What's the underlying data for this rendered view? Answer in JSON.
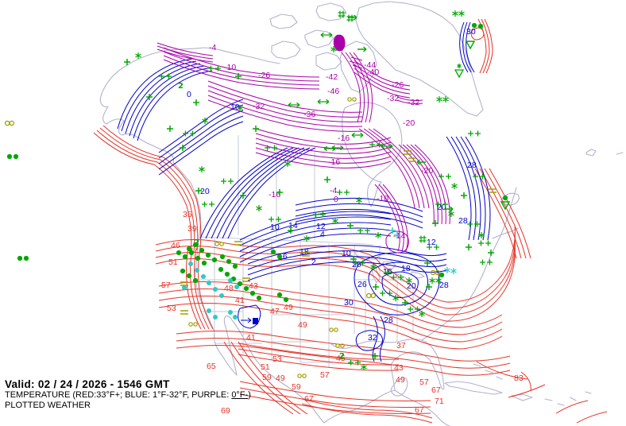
{
  "header": {
    "valid_label": "Valid: 02 / 24 / 2026  -  1546 GMT",
    "legend_prefix": "TEMPERATURE (RED:33°F+; BLUE: 1°F-32°F, PURPLE: ",
    "legend_underlined": "0°F-",
    "legend_suffix": ")",
    "plotted_label": "PLOTTED WEATHER"
  },
  "colors": {
    "red": "#e63328",
    "blue": "#0000c8",
    "purple": "#aa00aa",
    "green": "#00a800",
    "cyan": "#2fc8c8",
    "olive": "#a0a000",
    "coast": "#b2b2cf",
    "border": "#c6c9da",
    "text": "#000000",
    "background": "#ffffff"
  },
  "map": {
    "region": "North America",
    "contour_units": "°F",
    "label_format": [
      "text",
      "x",
      "y",
      "color_class"
    ],
    "contour_labels": [
      [
        "46",
        215,
        312,
        "r"
      ],
      [
        "51",
        212,
        333,
        "r"
      ],
      [
        "57",
        203,
        362,
        "r"
      ],
      [
        "53",
        210,
        391,
        "r"
      ],
      [
        "35",
        230,
        273,
        "r"
      ],
      [
        "39",
        236,
        291,
        "r"
      ],
      [
        "48",
        282,
        366,
        "r"
      ],
      [
        "43",
        313,
        363,
        "r"
      ],
      [
        "41",
        296,
        381,
        "r"
      ],
      [
        "49",
        357,
        390,
        "r"
      ],
      [
        "47",
        340,
        395,
        "r"
      ],
      [
        "49",
        375,
        412,
        "r"
      ],
      [
        "41",
        310,
        428,
        "r"
      ],
      [
        "45",
        423,
        454,
        "r"
      ],
      [
        "37",
        499,
        438,
        "r"
      ],
      [
        "43",
        496,
        466,
        "r"
      ],
      [
        "49",
        498,
        481,
        "r"
      ],
      [
        "57",
        528,
        484,
        "r"
      ],
      [
        "67",
        543,
        494,
        "r"
      ],
      [
        "71",
        547,
        508,
        "r"
      ],
      [
        "67",
        522,
        519,
        "r"
      ],
      [
        "83",
        647,
        479,
        "r"
      ],
      [
        "69",
        278,
        520,
        "r"
      ],
      [
        "49",
        347,
        479,
        "r"
      ],
      [
        "65",
        260,
        464,
        "r"
      ],
      [
        "53",
        343,
        455,
        "r"
      ],
      [
        "51",
        328,
        465,
        "r"
      ],
      [
        "59",
        330,
        478,
        "r"
      ],
      [
        "59",
        367,
        490,
        "r"
      ],
      [
        "57",
        403,
        475,
        "r"
      ],
      [
        "67",
        383,
        505,
        "r"
      ],
      [
        "0",
        235,
        122,
        "b"
      ],
      [
        "10",
        290,
        138,
        "b"
      ],
      [
        "20",
        252,
        244,
        "b"
      ],
      [
        "14",
        363,
        287,
        "b"
      ],
      [
        "10",
        340,
        289,
        "b"
      ],
      [
        "12",
        398,
        288,
        "b"
      ],
      [
        "4",
        403,
        298,
        "b"
      ],
      [
        "18",
        377,
        320,
        "b"
      ],
      [
        "16",
        350,
        326,
        "b"
      ],
      [
        "2",
        392,
        333,
        "b"
      ],
      [
        "10",
        430,
        322,
        "b"
      ],
      [
        "20",
        443,
        336,
        "b"
      ],
      [
        "16",
        482,
        345,
        "b"
      ],
      [
        "18",
        505,
        341,
        "b"
      ],
      [
        "20",
        512,
        363,
        "b"
      ],
      [
        "26",
        450,
        361,
        "b"
      ],
      [
        "28",
        553,
        362,
        "b"
      ],
      [
        "30",
        433,
        384,
        "b"
      ],
      [
        "28",
        483,
        406,
        "b"
      ],
      [
        "32",
        463,
        428,
        "b"
      ],
      [
        "20",
        550,
        264,
        "b"
      ],
      [
        "28",
        588,
        211,
        "b"
      ],
      [
        "28",
        577,
        281,
        "b"
      ],
      [
        "30",
        587,
        43,
        "b"
      ],
      [
        "12",
        537,
        308,
        "b"
      ],
      [
        "-4",
        263,
        63,
        "p"
      ],
      [
        "-10",
        282,
        88,
        "p"
      ],
      [
        "-26",
        325,
        98,
        "p"
      ],
      [
        "-32",
        318,
        137,
        "p"
      ],
      [
        "-36",
        382,
        147,
        "p"
      ],
      [
        "-42",
        410,
        100,
        "p"
      ],
      [
        "-46",
        412,
        118,
        "p"
      ],
      [
        "-44",
        458,
        85,
        "p"
      ],
      [
        "-40",
        462,
        94,
        "p"
      ],
      [
        "-26",
        493,
        110,
        "p"
      ],
      [
        "-32",
        487,
        127,
        "p"
      ],
      [
        "-32",
        513,
        132,
        "p"
      ],
      [
        "-20",
        507,
        158,
        "p"
      ],
      [
        "-16",
        425,
        177,
        "p"
      ],
      [
        "-16",
        413,
        207,
        "p"
      ],
      [
        "-4",
        415,
        243,
        "p"
      ],
      [
        "0",
        420,
        254,
        "p"
      ],
      [
        "-10",
        474,
        253,
        "p"
      ],
      [
        "-16",
        338,
        248,
        "p"
      ],
      [
        "-14",
        495,
        300,
        "p"
      ],
      [
        "-20",
        530,
        218,
        "p"
      ]
    ],
    "station_symbol_format": [
      "symbol_type",
      "x",
      "y"
    ],
    "station_symbol_legend": {
      "dot": "green station dot",
      "dotc": "cyan station dot",
      "plus": "green plus",
      "plusc": "cyan plus",
      "dplus": "green double plus",
      "ast": "green asterisk",
      "astc": "cyan asterisk",
      "dast": "green double asterisk",
      "hash": "green hash",
      "arr": "green right arrow",
      "arl": "green left arrow",
      "darr": "green double arrow",
      "tri": "green open triangle",
      "tria": "green triangle with asterisk",
      "inf": "olive infinity (haze)",
      "eq": "olive bars (fog)",
      "oo": "olive circles",
      "sq": "green drizzle squiggle"
    },
    "stations": [
      [
        "inf",
        12,
        155
      ],
      [
        "inf",
        467,
        372
      ],
      [
        "inf",
        548,
        343
      ],
      [
        "dot",
        225,
        318
      ],
      [
        "dot",
        233,
        323
      ],
      [
        "dot",
        241,
        318
      ],
      [
        "dot",
        249,
        325
      ],
      [
        "dot",
        257,
        331
      ],
      [
        "dot",
        238,
        313
      ],
      [
        "dot",
        246,
        308
      ],
      [
        "dot",
        254,
        315
      ],
      [
        "dot",
        262,
        321
      ],
      [
        "dot",
        270,
        327
      ],
      [
        "dot",
        230,
        341
      ],
      [
        "dot",
        238,
        347
      ],
      [
        "dot",
        246,
        353
      ],
      [
        "dot",
        278,
        339
      ],
      [
        "dot",
        286,
        345
      ],
      [
        "dot",
        294,
        351
      ],
      [
        "dot",
        302,
        357
      ],
      [
        "dot",
        310,
        363
      ],
      [
        "dot",
        318,
        369
      ],
      [
        "dot",
        280,
        323
      ],
      [
        "dot",
        288,
        329
      ],
      [
        "dot",
        296,
        335
      ],
      [
        "dot",
        326,
        375
      ],
      [
        "dot",
        344,
        317
      ],
      [
        "dot",
        352,
        323
      ],
      [
        "dot",
        352,
        371
      ],
      [
        "dot",
        360,
        377
      ],
      [
        "dot",
        12,
        197
      ],
      [
        "dot",
        20,
        197
      ],
      [
        "dot",
        25,
        325
      ],
      [
        "dot",
        33,
        325
      ],
      [
        "dot",
        597,
        32
      ],
      [
        "dot",
        605,
        33
      ],
      [
        "dot",
        636,
        249
      ],
      [
        "dot",
        556,
        346
      ],
      [
        "dotc",
        240,
        332
      ],
      [
        "dotc",
        248,
        340
      ],
      [
        "dotc",
        256,
        348
      ],
      [
        "dotc",
        263,
        356
      ],
      [
        "dotc",
        271,
        364
      ],
      [
        "dotc",
        279,
        372
      ],
      [
        "dotc",
        263,
        391
      ],
      [
        "dotc",
        271,
        399
      ],
      [
        "dotc",
        290,
        393
      ],
      [
        "dotc",
        296,
        399
      ],
      [
        "dotc",
        290,
        353
      ],
      [
        "dotc",
        298,
        361
      ],
      [
        "dotc",
        232,
        362
      ],
      [
        "plus",
        160,
        78
      ],
      [
        "plus",
        188,
        122
      ],
      [
        "plus",
        214,
        162
      ],
      [
        "plus",
        247,
        129
      ],
      [
        "plus",
        300,
        96
      ],
      [
        "plus",
        322,
        162
      ],
      [
        "plus",
        230,
        186
      ],
      [
        "plus",
        250,
        240
      ],
      [
        "plus",
        306,
        246
      ],
      [
        "plus",
        352,
        242
      ],
      [
        "plus",
        366,
        290
      ],
      [
        "plus",
        412,
        226
      ],
      [
        "plus",
        441,
        284
      ],
      [
        "plus",
        445,
        326
      ],
      [
        "plus",
        473,
        361
      ],
      [
        "plus",
        488,
        343
      ],
      [
        "plus",
        510,
        381
      ],
      [
        "plus",
        540,
        361
      ],
      [
        "plus",
        538,
        331
      ],
      [
        "plus",
        584,
        246
      ],
      [
        "plus",
        548,
        281
      ],
      [
        "plus",
        590,
        311
      ],
      [
        "plus",
        618,
        318
      ],
      [
        "plus",
        472,
        448
      ],
      [
        "dplus",
        208,
        96
      ],
      [
        "dplus",
        238,
        168
      ],
      [
        "dplus",
        270,
        86
      ],
      [
        "dplus",
        341,
        186
      ],
      [
        "dplus",
        262,
        257
      ],
      [
        "dplus",
        286,
        228
      ],
      [
        "dplus",
        346,
        276
      ],
      [
        "dplus",
        402,
        270
      ],
      [
        "dplus",
        432,
        242
      ],
      [
        "dplus",
        458,
        290
      ],
      [
        "dplus",
        452,
        331
      ],
      [
        "dplus",
        486,
        369
      ],
      [
        "dplus",
        500,
        349
      ],
      [
        "dplus",
        521,
        389
      ],
      [
        "dplus",
        560,
        222
      ],
      [
        "dplus",
        556,
        257
      ],
      [
        "dplus",
        545,
        311
      ],
      [
        "dplus",
        596,
        282
      ],
      [
        "dplus",
        612,
        330
      ],
      [
        "dplus",
        610,
        306
      ],
      [
        "dplus",
        446,
        456
      ],
      [
        "dplus",
        473,
        182
      ],
      [
        "dplus",
        603,
        222
      ],
      [
        "dplus",
        597,
        168
      ],
      [
        "ast",
        174,
        70
      ],
      [
        "ast",
        258,
        152
      ],
      [
        "ast",
        302,
        136
      ],
      [
        "ast",
        362,
        206
      ],
      [
        "ast",
        254,
        213
      ],
      [
        "ast",
        326,
        262
      ],
      [
        "ast",
        386,
        300
      ],
      [
        "ast",
        422,
        278
      ],
      [
        "ast",
        452,
        252
      ],
      [
        "ast",
        476,
        296
      ],
      [
        "ast",
        470,
        336
      ],
      [
        "ast",
        515,
        353
      ],
      [
        "ast",
        498,
        375
      ],
      [
        "ast",
        531,
        395
      ],
      [
        "ast",
        572,
        234
      ],
      [
        "ast",
        568,
        269
      ],
      [
        "ast",
        606,
        296
      ],
      [
        "ast",
        458,
        462
      ],
      [
        "ast",
        420,
        62
      ],
      [
        "dast",
        548,
        353
      ],
      [
        "dast",
        557,
        125
      ],
      [
        "dast",
        577,
        17
      ],
      [
        "astc",
        563,
        340
      ],
      [
        "astc",
        571,
        341
      ],
      [
        "plusc",
        494,
        290
      ],
      [
        "plusc",
        500,
        296
      ],
      [
        "hash",
        430,
        18
      ],
      [
        "hash",
        441,
        23
      ],
      [
        "hash",
        532,
        301
      ],
      [
        "arr",
        444,
        22
      ],
      [
        "arr",
        456,
        62
      ],
      [
        "arr",
        565,
        263
      ],
      [
        "arl",
        530,
        204
      ],
      [
        "darr",
        411,
        44
      ],
      [
        "darr",
        370,
        132
      ],
      [
        "darr",
        407,
        128
      ],
      [
        "darr",
        415,
        187
      ],
      [
        "darr",
        450,
        170
      ],
      [
        "darr",
        425,
        186
      ],
      [
        "darr",
        487,
        184
      ],
      [
        "tri",
        592,
        56
      ],
      [
        "tri",
        636,
        258
      ],
      [
        "tria",
        578,
        88
      ],
      [
        "eq",
        513,
        192
      ],
      [
        "eq",
        519,
        201
      ],
      [
        "eq",
        232,
        357
      ],
      [
        "eq",
        310,
        352
      ],
      [
        "eq",
        232,
        393
      ],
      [
        "eq",
        300,
        306
      ],
      [
        "eq",
        385,
        320
      ],
      [
        "eq",
        620,
        240
      ],
      [
        "oo",
        276,
        307
      ],
      [
        "oo",
        243,
        408
      ],
      [
        "oo",
        420,
        415
      ],
      [
        "oo",
        428,
        435
      ],
      [
        "oo",
        380,
        473
      ],
      [
        "oo",
        443,
        125
      ],
      [
        "sq",
        227,
        107
      ],
      [
        "sq",
        430,
        447
      ],
      [
        "sq",
        247,
        304
      ]
    ]
  }
}
